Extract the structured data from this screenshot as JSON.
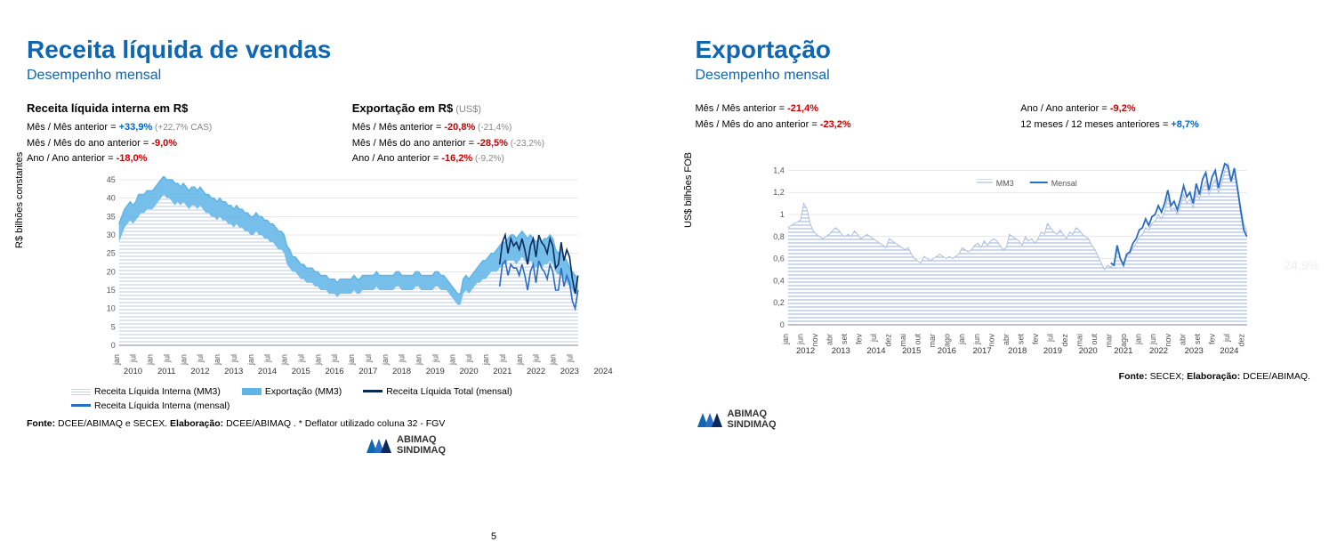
{
  "page_number": "5",
  "ghost_text": "24,9%",
  "left": {
    "title": "Receita líquida de vendas",
    "subtitle": "Desempenho mensal",
    "block_a": {
      "title": "Receita líquida interna em R$",
      "l1_label": "Mês / Mês anterior = ",
      "l1_val": "+33,9%",
      "l1_aux": " (+22,7% CAS)",
      "l2_label": "Mês / Mês do ano anterior = ",
      "l2_val": "-9,0%",
      "l3_label": "Ano / Ano anterior = ",
      "l3_val": "-18,0%"
    },
    "block_b": {
      "title": "Exportação em R$",
      "title_aux": " (US$)",
      "l1_label": "Mês / Mês anterior = ",
      "l1_val": "-20,8%",
      "l1_aux": " (-21,4%)",
      "l2_label": "Mês / Mês do ano anterior = ",
      "l2_val": "-28,5%",
      "l2_aux": " (-23,2%)",
      "l3_label": "Ano / Ano anterior = ",
      "l3_val": "-16,2%",
      "l3_aux": " (-9,2%)"
    },
    "chart": {
      "ylabel": "R$ bilhões constantes",
      "ylim": [
        0,
        45
      ],
      "ytick_step": 5,
      "year_labels": [
        "2010",
        "2011",
        "2012",
        "2013",
        "2014",
        "2015",
        "2016",
        "2017",
        "2018",
        "2019",
        "2020",
        "2021",
        "2022",
        "2023",
        "2024"
      ],
      "month_pairs": "jan,jul",
      "colors": {
        "fill_hatch": "#c9d4e2",
        "export_band": "#5fb4e8",
        "total_line": "#0a2a5c",
        "internal_line": "#2b6cc4",
        "grid": "#d0d0d0",
        "bg": "#ffffff"
      },
      "series_mm3_internal": [
        28,
        30,
        32,
        33,
        34,
        33,
        34,
        35,
        36,
        36,
        37,
        37,
        37,
        38,
        39,
        40,
        41,
        40,
        40,
        39,
        38,
        39,
        38,
        39,
        38,
        37,
        38,
        38,
        37,
        38,
        37,
        36,
        36,
        35,
        35,
        34,
        35,
        34,
        34,
        33,
        33,
        32,
        33,
        32,
        32,
        31,
        31,
        30,
        30,
        31,
        30,
        30,
        29,
        29,
        28,
        28,
        27,
        26,
        26,
        25,
        22,
        21,
        20,
        20,
        19,
        18,
        18,
        17,
        17,
        17,
        16,
        16,
        15,
        15,
        15,
        14,
        14,
        14,
        13,
        14,
        14,
        14,
        14,
        14,
        15,
        14,
        14,
        15,
        15,
        15,
        15,
        15,
        16,
        15,
        15,
        15,
        15,
        15,
        15,
        16,
        16,
        15,
        15,
        15,
        15,
        15,
        16,
        16,
        15,
        15,
        15,
        15,
        15,
        16,
        16,
        15,
        15,
        15,
        14,
        13,
        12,
        11,
        11,
        14,
        15,
        14,
        15,
        16,
        17,
        17,
        18,
        18,
        19,
        20,
        20,
        20,
        21,
        22,
        22,
        23,
        23,
        23,
        22,
        23,
        24,
        23,
        22,
        23,
        22,
        21,
        22,
        21,
        22,
        22,
        23,
        22,
        20,
        19,
        20,
        18,
        17,
        16,
        15,
        14,
        14
      ],
      "series_mm3_export": [
        5,
        5,
        5,
        5,
        5,
        5,
        5,
        6,
        5,
        5,
        5,
        5,
        5,
        5,
        5,
        5,
        5,
        5,
        5,
        6,
        6,
        5,
        5,
        5,
        5,
        5,
        5,
        5,
        5,
        5,
        5,
        5,
        5,
        5,
        5,
        5,
        5,
        5,
        5,
        5,
        5,
        5,
        5,
        5,
        5,
        5,
        5,
        5,
        5,
        5,
        5,
        5,
        5,
        5,
        5,
        5,
        5,
        5,
        5,
        5,
        5,
        5,
        4,
        4,
        4,
        4,
        4,
        4,
        4,
        4,
        4,
        4,
        4,
        4,
        4,
        4,
        4,
        4,
        4,
        4,
        4,
        4,
        4,
        4,
        4,
        4,
        4,
        4,
        4,
        4,
        4,
        4,
        4,
        4,
        4,
        4,
        4,
        4,
        4,
        4,
        4,
        4,
        4,
        4,
        4,
        4,
        4,
        4,
        4,
        4,
        4,
        4,
        4,
        4,
        4,
        4,
        4,
        3,
        3,
        3,
        3,
        3,
        3,
        4,
        4,
        4,
        4,
        4,
        4,
        5,
        5,
        5,
        5,
        5,
        5,
        6,
        6,
        6,
        6,
        6,
        7,
        7,
        7,
        7,
        7,
        7,
        7,
        7,
        7,
        7,
        7,
        7,
        7,
        7,
        7,
        7,
        6,
        6,
        6,
        6,
        6,
        5,
        5,
        5,
        4
      ],
      "series_total_monthly_tail": [
        22,
        28,
        30,
        25,
        29,
        27,
        28,
        26,
        29,
        26,
        22,
        27,
        29,
        24,
        30,
        28,
        27,
        25,
        29,
        27,
        21,
        22,
        28,
        23,
        26,
        24,
        18,
        14,
        19
      ],
      "series_internal_monthly_tail": [
        16,
        22,
        23,
        19,
        22,
        21,
        21,
        19,
        22,
        19,
        15,
        20,
        22,
        17,
        23,
        21,
        20,
        18,
        22,
        20,
        15,
        15,
        21,
        16,
        19,
        17,
        12,
        10,
        15
      ],
      "tail_start_index": 136,
      "legend": {
        "a": "Receita Líquida Interna (MM3)",
        "b": "Exportação (MM3)",
        "c": "Receita Líquida Total (mensal)",
        "d": "Receita Líquida Interna (mensal)"
      }
    },
    "source_1": "Fonte: ",
    "source_2": "DCEE/ABIMAQ e SECEX. ",
    "source_3": "Elaboração: ",
    "source_4": "DCEE/ABIMAQ . * Deflator utilizado coluna 32 - FGV"
  },
  "right": {
    "title": "Exportação",
    "subtitle": "Desempenho mensal",
    "stats": {
      "l1_label": "Mês / Mês anterior = ",
      "l1_val": "-21,4%",
      "l2_label": "Mês / Mês do ano anterior = ",
      "l2_val": "-23,2%",
      "r1_label": "Ano / Ano anterior = ",
      "r1_val": "-9,2%",
      "r2_label": "12 meses / 12 meses anteriores = ",
      "r2_val": "+8,7%"
    },
    "chart": {
      "ylabel": "US$  bilhões FOB",
      "ylim": [
        0,
        1.5
      ],
      "yticks": [
        "0",
        "0,2",
        "0,4",
        "0,6",
        "0,8",
        "1",
        "1,2",
        "1,4"
      ],
      "year_labels": [
        "2012",
        "2013",
        "2014",
        "2015",
        "2016",
        "2017",
        "2018",
        "2019",
        "2020",
        "2021",
        "2022",
        "2023",
        "2024"
      ],
      "month_ticks": [
        "jan",
        "jun",
        "nov",
        "abr",
        "set",
        "fev",
        "jul",
        "dez",
        "mai",
        "out",
        "mar",
        "ago",
        "jan",
        "jun",
        "nov",
        "abr",
        "set",
        "fev",
        "jul",
        "dez",
        "mai",
        "out",
        "mar",
        "ago",
        "jan",
        "jun",
        "nov",
        "abr",
        "set",
        "fev",
        "jul",
        "dez"
      ],
      "colors": {
        "fill_hatch": "#aebfde",
        "line": "#2b6cc4",
        "grid": "#d0d0d0"
      },
      "series_mm3": [
        0.88,
        0.9,
        0.92,
        0.93,
        0.95,
        1.1,
        1.05,
        0.92,
        0.85,
        0.82,
        0.8,
        0.78,
        0.8,
        0.82,
        0.85,
        0.88,
        0.86,
        0.82,
        0.8,
        0.82,
        0.8,
        0.85,
        0.82,
        0.78,
        0.8,
        0.82,
        0.8,
        0.78,
        0.76,
        0.74,
        0.72,
        0.7,
        0.78,
        0.76,
        0.74,
        0.72,
        0.7,
        0.68,
        0.7,
        0.64,
        0.6,
        0.58,
        0.56,
        0.62,
        0.6,
        0.58,
        0.6,
        0.62,
        0.64,
        0.62,
        0.6,
        0.62,
        0.6,
        0.62,
        0.64,
        0.7,
        0.68,
        0.66,
        0.68,
        0.72,
        0.74,
        0.7,
        0.76,
        0.72,
        0.76,
        0.78,
        0.76,
        0.72,
        0.68,
        0.7,
        0.82,
        0.8,
        0.78,
        0.76,
        0.72,
        0.8,
        0.76,
        0.78,
        0.74,
        0.78,
        0.84,
        0.82,
        0.92,
        0.88,
        0.84,
        0.82,
        0.86,
        0.82,
        0.78,
        0.84,
        0.82,
        0.88,
        0.86,
        0.82,
        0.8,
        0.78,
        0.72,
        0.68,
        0.62,
        0.56,
        0.5,
        0.54,
        0.52,
        0.56,
        0.68,
        0.6,
        0.56,
        0.62,
        0.64,
        0.7,
        0.74,
        0.8,
        0.82,
        0.88,
        0.86,
        0.92,
        0.94,
        1.0,
        0.96,
        1.02,
        1.16,
        1.04,
        1.06,
        1.0,
        1.08,
        1.18,
        1.1,
        1.14,
        1.06,
        1.2,
        1.14,
        1.24,
        1.3,
        1.18,
        1.26,
        1.32,
        1.2,
        1.28,
        1.4,
        1.46,
        1.3,
        1.42,
        1.26,
        1.08,
        0.92,
        0.84
      ],
      "series_monthly_tail": [
        0.56,
        0.54,
        0.72,
        0.6,
        0.54,
        0.64,
        0.66,
        0.74,
        0.78,
        0.86,
        0.88,
        0.96,
        0.9,
        0.98,
        1.0,
        1.08,
        1.02,
        1.1,
        1.22,
        1.08,
        1.12,
        1.04,
        1.14,
        1.26,
        1.16,
        1.2,
        1.1,
        1.28,
        1.18,
        1.32,
        1.38,
        1.22,
        1.34,
        1.4,
        1.24,
        1.36,
        1.46,
        1.44,
        1.3,
        1.42,
        1.24,
        1.04,
        0.86,
        0.8
      ],
      "tail_start_index": 102,
      "legend": {
        "a": "MM3",
        "b": "Mensal"
      }
    },
    "source_1": "Fonte: ",
    "source_2": "SECEX; ",
    "source_3": "Elaboração: ",
    "source_4": "DCEE/ABIMAQ."
  },
  "logo": {
    "line1": "ABIMAQ",
    "line2": "SINDIMAQ"
  }
}
